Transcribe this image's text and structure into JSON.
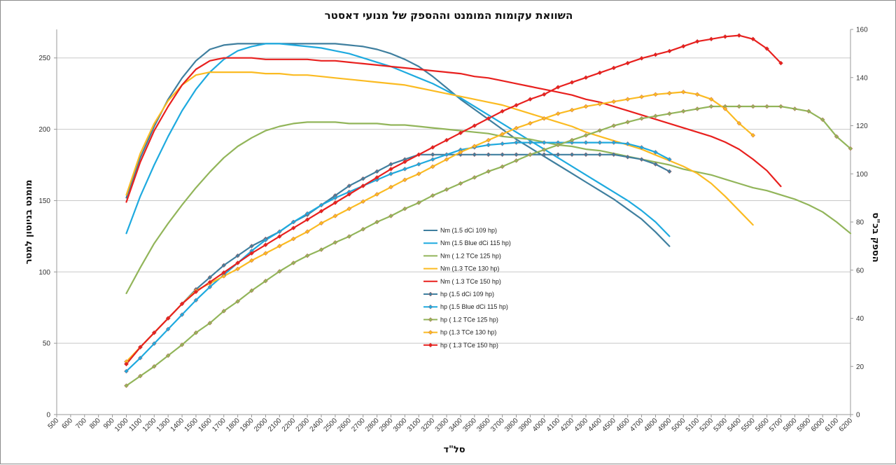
{
  "chart_data": {
    "type": "line",
    "title": "השוואת עקומות המומנט וההספק של מנועי דאסטר",
    "xlabel": "סל\"ד",
    "ylabel": "מומנט בניוטון למטר",
    "y2label": "הספק בכ\"ס",
    "xlim": [
      500,
      6200
    ],
    "ylim": [
      0,
      270
    ],
    "y2lim": [
      0,
      160
    ],
    "x_ticks": [
      500,
      600,
      700,
      800,
      900,
      1000,
      1100,
      1200,
      1300,
      1400,
      1500,
      1600,
      1700,
      1800,
      1900,
      2000,
      2100,
      2200,
      2300,
      2400,
      2500,
      2600,
      2700,
      2800,
      2900,
      3000,
      3100,
      3200,
      3300,
      3400,
      3500,
      3600,
      3700,
      3800,
      3900,
      4000,
      4100,
      4200,
      4300,
      4400,
      4500,
      4600,
      4700,
      4800,
      4900,
      5000,
      5100,
      5200,
      5300,
      5400,
      5500,
      5600,
      5700,
      5800,
      5900,
      6000,
      6100,
      6200
    ],
    "y_ticks": [
      0,
      50,
      100,
      150,
      200,
      250
    ],
    "y2_ticks": [
      0,
      20,
      40,
      60,
      80,
      100,
      120,
      140,
      160
    ],
    "colors": {
      "dci109": "#3f7f9f",
      "blue115": "#1eaadf",
      "tce125": "#92b55a",
      "tce130": "#fbbb22",
      "tce150": "#e8201e"
    },
    "series": [
      {
        "name": "Nm (1.5 dCi 109 hp)",
        "kind": "torque",
        "color_key": "dci109",
        "x": [
          1000,
          1100,
          1200,
          1300,
          1400,
          1500,
          1600,
          1700,
          1800,
          1900,
          2000,
          2100,
          2200,
          2300,
          2400,
          2500,
          2600,
          2700,
          2800,
          2900,
          3000,
          3100,
          3200,
          3300,
          3400,
          3500,
          3600,
          3700,
          3800,
          3900,
          4000,
          4100,
          4200,
          4300,
          4400,
          4500,
          4600,
          4700,
          4800,
          4900
        ],
        "y": [
          152,
          180,
          202,
          221,
          236,
          248,
          256,
          259,
          260,
          260,
          260,
          260,
          260,
          260,
          260,
          260,
          259,
          258,
          256,
          253,
          249,
          244,
          237,
          229,
          221,
          214,
          207,
          200,
          193,
          187,
          181,
          175,
          169,
          163,
          157,
          151,
          144,
          137,
          128,
          118
        ]
      },
      {
        "name": "Nm (1.5 Blue dCi 115 hp)",
        "kind": "torque",
        "color_key": "blue115",
        "x": [
          1000,
          1100,
          1200,
          1300,
          1400,
          1500,
          1600,
          1700,
          1800,
          1900,
          2000,
          2100,
          2200,
          2300,
          2400,
          2500,
          2600,
          2700,
          2800,
          2900,
          3000,
          3100,
          3200,
          3300,
          3400,
          3500,
          3600,
          3700,
          3800,
          3900,
          4000,
          4100,
          4200,
          4300,
          4400,
          4500,
          4600,
          4700,
          4800,
          4900
        ],
        "y": [
          127,
          153,
          175,
          195,
          213,
          228,
          240,
          249,
          255,
          258,
          260,
          260,
          259,
          258,
          257,
          255,
          253,
          250,
          247,
          244,
          240,
          236,
          232,
          227,
          222,
          216,
          210,
          204,
          198,
          192,
          186,
          180,
          174,
          168,
          162,
          156,
          150,
          143,
          135,
          125
        ]
      },
      {
        "name": "Nm ( 1.2 TCe 125 hp)",
        "kind": "torque",
        "color_key": "tce125",
        "x": [
          1000,
          1100,
          1200,
          1300,
          1400,
          1500,
          1600,
          1700,
          1800,
          1900,
          2000,
          2100,
          2200,
          2300,
          2400,
          2500,
          2600,
          2700,
          2800,
          2900,
          3000,
          3100,
          3200,
          3300,
          3400,
          3500,
          3600,
          3700,
          3800,
          3900,
          4000,
          4100,
          4200,
          4300,
          4400,
          4500,
          4600,
          4700,
          4800,
          4900,
          5000,
          5100,
          5200,
          5300,
          5400,
          5500,
          5600,
          5700,
          5800,
          5900,
          6000,
          6100,
          6200
        ],
        "y": [
          85,
          103,
          120,
          134,
          147,
          159,
          170,
          180,
          188,
          194,
          199,
          202,
          204,
          205,
          205,
          205,
          204,
          204,
          204,
          203,
          203,
          202,
          201,
          200,
          199,
          198,
          197,
          195,
          194,
          193,
          191,
          189,
          188,
          186,
          185,
          183,
          181,
          179,
          177,
          175,
          172,
          170,
          168,
          165,
          162,
          159,
          157,
          154,
          151,
          147,
          142,
          135,
          127
        ]
      },
      {
        "name": "Nm (1.3 TCe 130 hp)",
        "kind": "torque",
        "color_key": "tce130",
        "x": [
          1000,
          1100,
          1200,
          1300,
          1400,
          1500,
          1600,
          1700,
          1800,
          1900,
          2000,
          2100,
          2200,
          2300,
          2400,
          2500,
          2600,
          2700,
          2800,
          2900,
          3000,
          3100,
          3200,
          3300,
          3400,
          3500,
          3600,
          3700,
          3800,
          3900,
          4000,
          4100,
          4200,
          4300,
          4400,
          4500,
          4600,
          4700,
          4800,
          4900,
          5000,
          5100,
          5200,
          5300,
          5400,
          5500
        ],
        "y": [
          154,
          183,
          204,
          220,
          231,
          238,
          240,
          240,
          240,
          240,
          239,
          239,
          238,
          238,
          237,
          236,
          235,
          234,
          233,
          232,
          231,
          229,
          227,
          225,
          223,
          221,
          219,
          217,
          214,
          211,
          208,
          205,
          202,
          198,
          195,
          192,
          189,
          186,
          182,
          178,
          174,
          169,
          162,
          153,
          143,
          133
        ]
      },
      {
        "name": "Nm ( 1.3 TCe 150 hp)",
        "kind": "torque",
        "color_key": "tce150",
        "x": [
          1000,
          1100,
          1200,
          1300,
          1400,
          1500,
          1600,
          1700,
          1800,
          1900,
          2000,
          2100,
          2200,
          2300,
          2400,
          2500,
          2600,
          2700,
          2800,
          2900,
          3000,
          3100,
          3200,
          3300,
          3400,
          3500,
          3600,
          3700,
          3800,
          3900,
          4000,
          4100,
          4200,
          4300,
          4400,
          4500,
          4600,
          4700,
          4800,
          4900,
          5000,
          5100,
          5200,
          5300,
          5400,
          5500,
          5600,
          5700
        ],
        "y": [
          149,
          177,
          199,
          216,
          231,
          242,
          248,
          250,
          250,
          250,
          249,
          249,
          249,
          249,
          248,
          248,
          247,
          246,
          245,
          244,
          243,
          242,
          241,
          240,
          239,
          237,
          236,
          234,
          232,
          230,
          228,
          226,
          224,
          221,
          219,
          216,
          213,
          210,
          207,
          204,
          201,
          198,
          195,
          191,
          186,
          179,
          171,
          160
        ]
      },
      {
        "name": "hp (1.5 dCi 109 hp)",
        "kind": "power",
        "color_key": "dci109",
        "x": [
          1000,
          1100,
          1200,
          1300,
          1400,
          1500,
          1600,
          1700,
          1800,
          1900,
          2000,
          2100,
          2200,
          2300,
          2400,
          2500,
          2600,
          2700,
          2800,
          2900,
          3000,
          3100,
          3200,
          3300,
          3400,
          3500,
          3600,
          3700,
          3800,
          3900,
          4000,
          4100,
          4200,
          4300,
          4400,
          4500,
          4600,
          4700,
          4800,
          4900
        ],
        "y": [
          21,
          28,
          34,
          40,
          46,
          52,
          57,
          62,
          66,
          70,
          73,
          76,
          80,
          83,
          87,
          91,
          95,
          98,
          101,
          104,
          106,
          108,
          108,
          108,
          108,
          108,
          108,
          108,
          108,
          108,
          108,
          108,
          108,
          108,
          108,
          108,
          107,
          106,
          104,
          101
        ]
      },
      {
        "name": "hp (1.5 Blue dCi 115 hp)",
        "kind": "power",
        "color_key": "blue115",
        "x": [
          1000,
          1100,
          1200,
          1300,
          1400,
          1500,
          1600,
          1700,
          1800,
          1900,
          2000,
          2100,
          2200,
          2300,
          2400,
          2500,
          2600,
          2700,
          2800,
          2900,
          3000,
          3100,
          3200,
          3300,
          3400,
          3500,
          3600,
          3700,
          3800,
          3900,
          4000,
          4100,
          4200,
          4300,
          4400,
          4500,
          4600,
          4700,
          4800,
          4900
        ],
        "y": [
          18,
          23.5,
          29.5,
          35.5,
          41.5,
          47.5,
          53,
          58,
          63,
          68,
          72.5,
          76,
          80,
          83.5,
          87,
          90,
          92.5,
          95,
          97.5,
          100,
          102,
          104,
          106,
          108,
          110,
          111,
          112,
          112.5,
          113,
          113,
          113,
          113,
          113,
          113,
          113,
          113,
          112.5,
          111,
          109,
          106
        ]
      },
      {
        "name": "hp ( 1.2 TCe 125 hp)",
        "kind": "power",
        "color_key": "tce125",
        "x": [
          1000,
          1100,
          1200,
          1300,
          1400,
          1500,
          1600,
          1700,
          1800,
          1900,
          2000,
          2100,
          2200,
          2300,
          2400,
          2500,
          2600,
          2700,
          2800,
          2900,
          3000,
          3100,
          3200,
          3300,
          3400,
          3500,
          3600,
          3700,
          3800,
          3900,
          4000,
          4100,
          4200,
          4300,
          4400,
          4500,
          4600,
          4700,
          4800,
          4900,
          5000,
          5100,
          5200,
          5300,
          5400,
          5500,
          5600,
          5700,
          5800,
          5900,
          6000,
          6100,
          6200
        ],
        "y": [
          12,
          16,
          20,
          24.5,
          29,
          34,
          38,
          43,
          47,
          51.5,
          55.5,
          59.5,
          63,
          66,
          68.5,
          71.5,
          74,
          77,
          80,
          82.5,
          85.5,
          88,
          91,
          93.5,
          96,
          98.5,
          101,
          103,
          105.5,
          108,
          110,
          112,
          114,
          116,
          118,
          120,
          121.5,
          123,
          124,
          125,
          126,
          127,
          128,
          128,
          128,
          128,
          128,
          128,
          127,
          126,
          122.5,
          115.5,
          110.5
        ]
      },
      {
        "name": "hp (1.3 TCe 130 hp)",
        "kind": "power",
        "color_key": "tce130",
        "x": [
          1000,
          1100,
          1200,
          1300,
          1400,
          1500,
          1600,
          1700,
          1800,
          1900,
          2000,
          2100,
          2200,
          2300,
          2400,
          2500,
          2600,
          2700,
          2800,
          2900,
          3000,
          3100,
          3200,
          3300,
          3400,
          3500,
          3600,
          3700,
          3800,
          3900,
          4000,
          4100,
          4200,
          4300,
          4400,
          4500,
          4600,
          4700,
          4800,
          4900,
          5000,
          5100,
          5200,
          5300,
          5400,
          5500
        ],
        "y": [
          22,
          28,
          34,
          40,
          46,
          51.5,
          54.5,
          57.5,
          60.5,
          64,
          67,
          70,
          73,
          76,
          79.5,
          82.5,
          85.5,
          88.5,
          91.5,
          94.5,
          97.5,
          100,
          103,
          106,
          109,
          111.5,
          114,
          116.5,
          119,
          121,
          123,
          125,
          126.5,
          128,
          129,
          130,
          131,
          132,
          133,
          133.5,
          134,
          133,
          131,
          127,
          121,
          116
        ]
      },
      {
        "name": "hp ( 1.3 TCe 150 hp)",
        "kind": "power",
        "color_key": "tce150",
        "x": [
          1000,
          1100,
          1200,
          1300,
          1400,
          1500,
          1600,
          1700,
          1800,
          1900,
          2000,
          2100,
          2200,
          2300,
          2400,
          2500,
          2600,
          2700,
          2800,
          2900,
          3000,
          3100,
          3200,
          3300,
          3400,
          3500,
          3600,
          3700,
          3800,
          3900,
          4000,
          4100,
          4200,
          4300,
          4400,
          4500,
          4600,
          4700,
          4800,
          4900,
          5000,
          5100,
          5200,
          5300,
          5400,
          5500,
          5600,
          5700
        ],
        "y": [
          21,
          28,
          34,
          40,
          46,
          51,
          55,
          59,
          63,
          67,
          70.5,
          74,
          77.5,
          81,
          84.5,
          88,
          91.5,
          95,
          98.5,
          102,
          105,
          108,
          111,
          114,
          117,
          120,
          123,
          126,
          128.5,
          131,
          133,
          136,
          138,
          140,
          142,
          144,
          146,
          148,
          149.5,
          151,
          153,
          155,
          156,
          157,
          157.5,
          156,
          152,
          146
        ]
      }
    ]
  }
}
